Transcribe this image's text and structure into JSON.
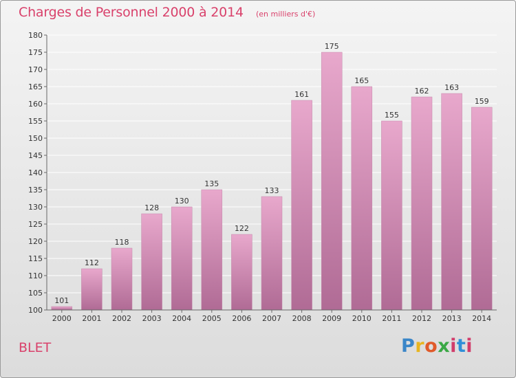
{
  "header": {
    "title": "Charges de Personnel 2000 à 2014",
    "subtitle": "(en milliers d'€)"
  },
  "footer": {
    "commune": "BLET",
    "logo_letters": [
      "P",
      "r",
      "o",
      "x",
      "i",
      "t",
      "i"
    ]
  },
  "colors": {
    "title": "#d9416b",
    "bar_top": "#e8a8cc",
    "bar_bottom": "#b06b95"
  },
  "chart_data": {
    "type": "bar",
    "categories": [
      "2000",
      "2001",
      "2002",
      "2003",
      "2004",
      "2005",
      "2006",
      "2007",
      "2008",
      "2009",
      "2010",
      "2011",
      "2012",
      "2013",
      "2014"
    ],
    "values": [
      101,
      112,
      118,
      128,
      130,
      135,
      122,
      133,
      161,
      175,
      165,
      155,
      162,
      163,
      159
    ],
    "ylim": [
      100,
      180
    ],
    "yticks": [
      100,
      105,
      110,
      115,
      120,
      125,
      130,
      135,
      140,
      145,
      150,
      155,
      160,
      165,
      170,
      175,
      180
    ],
    "grid": true,
    "legend": "none"
  }
}
